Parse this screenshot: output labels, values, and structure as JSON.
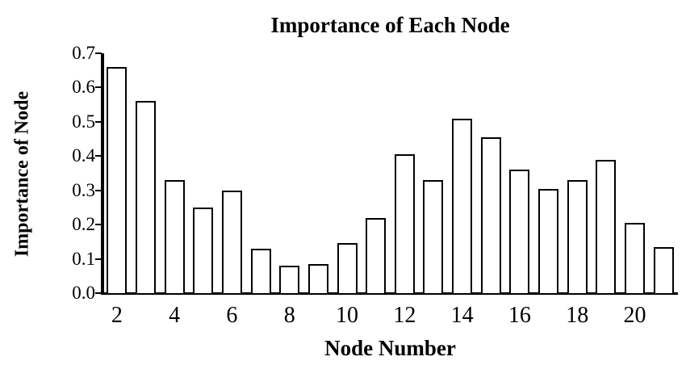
{
  "chart_data": {
    "type": "bar",
    "title": "Importance of Each Node",
    "xlabel": "Node Number",
    "ylabel": "Importance of Node",
    "categories": [
      2,
      3,
      4,
      5,
      6,
      7,
      8,
      9,
      10,
      11,
      12,
      13,
      14,
      15,
      16,
      17,
      18,
      19,
      20,
      21
    ],
    "values": [
      0.66,
      0.56,
      0.33,
      0.25,
      0.3,
      0.13,
      0.08,
      0.085,
      0.145,
      0.22,
      0.405,
      0.33,
      0.51,
      0.455,
      0.36,
      0.305,
      0.33,
      0.39,
      0.205,
      0.135
    ],
    "x_tick_labels": [
      "2",
      "4",
      "6",
      "8",
      "10",
      "12",
      "14",
      "16",
      "18",
      "20"
    ],
    "y_tick_labels": [
      "0.0",
      "0.1",
      "0.2",
      "0.3",
      "0.4",
      "0.5",
      "0.6",
      "0.7"
    ],
    "ylim": [
      0,
      0.7
    ],
    "grid": false,
    "legend": false,
    "bar_fill": "#ffffff",
    "bar_border": "#000000"
  }
}
